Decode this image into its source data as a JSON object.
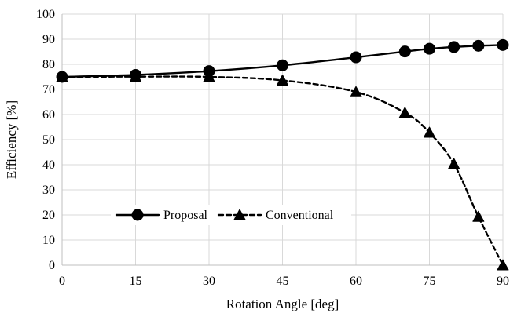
{
  "chart_data": {
    "type": "line",
    "title": "",
    "xlabel": "Rotation Angle [deg]",
    "ylabel": "Efficiency [%]",
    "xlim": [
      0,
      90
    ],
    "ylim": [
      0,
      100
    ],
    "x_ticks": [
      0,
      15,
      30,
      45,
      60,
      75,
      90
    ],
    "y_ticks": [
      0,
      10,
      20,
      30,
      40,
      50,
      60,
      70,
      80,
      90,
      100
    ],
    "grid": true,
    "legend_position": "left-center",
    "series": [
      {
        "name": "Proposal",
        "line_style": "solid",
        "marker": "circle",
        "color": "#000000",
        "x": [
          0,
          15,
          30,
          45,
          60,
          70,
          75,
          80,
          85,
          90
        ],
        "y": [
          75,
          75.8,
          77.3,
          79.6,
          82.8,
          85.1,
          86.2,
          86.9,
          87.4,
          87.7
        ]
      },
      {
        "name": "Conventional",
        "line_style": "dashed",
        "marker": "triangle",
        "color": "#000000",
        "x": [
          0,
          15,
          30,
          45,
          60,
          70,
          75,
          80,
          85,
          90
        ],
        "y": [
          75,
          75.1,
          75,
          73.6,
          69,
          60.7,
          52.8,
          40.3,
          19.3,
          0
        ]
      }
    ]
  }
}
